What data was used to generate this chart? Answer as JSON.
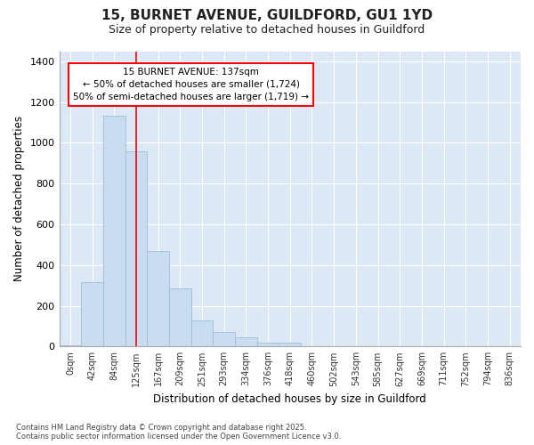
{
  "title_line1": "15, BURNET AVENUE, GUILDFORD, GU1 1YD",
  "title_line2": "Size of property relative to detached houses in Guildford",
  "xlabel": "Distribution of detached houses by size in Guildford",
  "ylabel": "Number of detached properties",
  "bar_labels": [
    "0sqm",
    "42sqm",
    "84sqm",
    "125sqm",
    "167sqm",
    "209sqm",
    "251sqm",
    "293sqm",
    "334sqm",
    "376sqm",
    "418sqm",
    "460sqm",
    "502sqm",
    "543sqm",
    "585sqm",
    "627sqm",
    "669sqm",
    "711sqm",
    "752sqm",
    "794sqm",
    "836sqm"
  ],
  "bar_values": [
    5,
    315,
    1135,
    960,
    470,
    285,
    130,
    70,
    45,
    20,
    20,
    0,
    0,
    0,
    0,
    0,
    0,
    0,
    0,
    0,
    0
  ],
  "bar_color": "#c8ddf0",
  "bar_edgecolor": "#a0bcd8",
  "plot_bg_color": "#dce8f5",
  "fig_bg_color": "#ffffff",
  "grid_color": "#ffffff",
  "ylim_max": 1450,
  "yticks": [
    0,
    200,
    400,
    600,
    800,
    1000,
    1200,
    1400
  ],
  "vline_x": 3.0,
  "annotation_title": "15 BURNET AVENUE: 137sqm",
  "annotation_line2": "← 50% of detached houses are smaller (1,724)",
  "annotation_line3": "50% of semi-detached houses are larger (1,719) →",
  "footnote": "Contains HM Land Registry data © Crown copyright and database right 2025.\nContains public sector information licensed under the Open Government Licence v3.0."
}
